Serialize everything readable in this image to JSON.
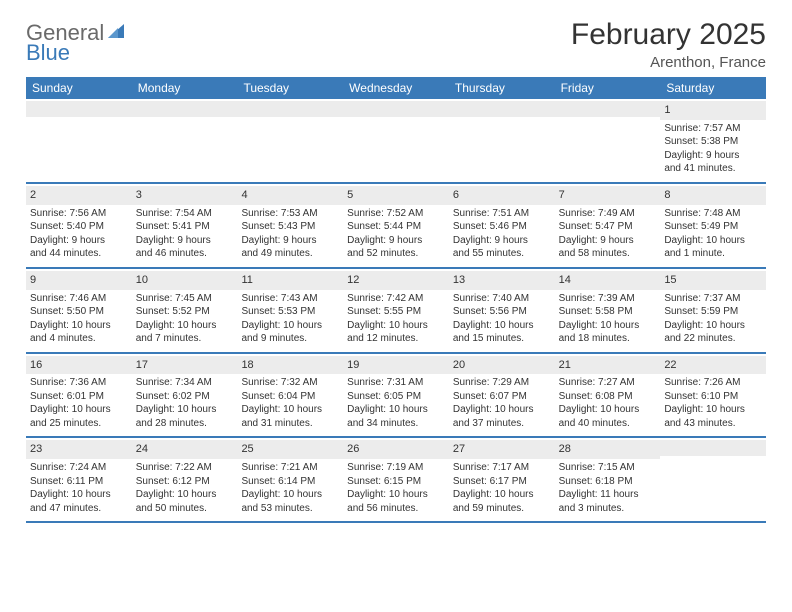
{
  "brand": {
    "word1": "General",
    "word2": "Blue"
  },
  "title": "February 2025",
  "location": "Arenthon, France",
  "colors": {
    "header_bg": "#3a7ab8",
    "header_text": "#ffffff",
    "daynum_bg": "#ececec",
    "row_border": "#3a7ab8",
    "title_text": "#333333",
    "body_text": "#333333",
    "logo_gray": "#6a6a6a",
    "logo_blue": "#3a7ab8",
    "page_bg": "#ffffff"
  },
  "typography": {
    "title_fontsize": 30,
    "location_fontsize": 15,
    "header_fontsize": 12,
    "daynum_fontsize": 11,
    "body_fontsize": 10,
    "logo_fontsize": 22
  },
  "layout": {
    "columns": 7,
    "day_cell_lines": 4
  },
  "weekdays": [
    "Sunday",
    "Monday",
    "Tuesday",
    "Wednesday",
    "Thursday",
    "Friday",
    "Saturday"
  ],
  "weeks": [
    [
      null,
      null,
      null,
      null,
      null,
      null,
      {
        "n": "1",
        "sr": "Sunrise: 7:57 AM",
        "ss": "Sunset: 5:38 PM",
        "d1": "Daylight: 9 hours",
        "d2": "and 41 minutes."
      }
    ],
    [
      {
        "n": "2",
        "sr": "Sunrise: 7:56 AM",
        "ss": "Sunset: 5:40 PM",
        "d1": "Daylight: 9 hours",
        "d2": "and 44 minutes."
      },
      {
        "n": "3",
        "sr": "Sunrise: 7:54 AM",
        "ss": "Sunset: 5:41 PM",
        "d1": "Daylight: 9 hours",
        "d2": "and 46 minutes."
      },
      {
        "n": "4",
        "sr": "Sunrise: 7:53 AM",
        "ss": "Sunset: 5:43 PM",
        "d1": "Daylight: 9 hours",
        "d2": "and 49 minutes."
      },
      {
        "n": "5",
        "sr": "Sunrise: 7:52 AM",
        "ss": "Sunset: 5:44 PM",
        "d1": "Daylight: 9 hours",
        "d2": "and 52 minutes."
      },
      {
        "n": "6",
        "sr": "Sunrise: 7:51 AM",
        "ss": "Sunset: 5:46 PM",
        "d1": "Daylight: 9 hours",
        "d2": "and 55 minutes."
      },
      {
        "n": "7",
        "sr": "Sunrise: 7:49 AM",
        "ss": "Sunset: 5:47 PM",
        "d1": "Daylight: 9 hours",
        "d2": "and 58 minutes."
      },
      {
        "n": "8",
        "sr": "Sunrise: 7:48 AM",
        "ss": "Sunset: 5:49 PM",
        "d1": "Daylight: 10 hours",
        "d2": "and 1 minute."
      }
    ],
    [
      {
        "n": "9",
        "sr": "Sunrise: 7:46 AM",
        "ss": "Sunset: 5:50 PM",
        "d1": "Daylight: 10 hours",
        "d2": "and 4 minutes."
      },
      {
        "n": "10",
        "sr": "Sunrise: 7:45 AM",
        "ss": "Sunset: 5:52 PM",
        "d1": "Daylight: 10 hours",
        "d2": "and 7 minutes."
      },
      {
        "n": "11",
        "sr": "Sunrise: 7:43 AM",
        "ss": "Sunset: 5:53 PM",
        "d1": "Daylight: 10 hours",
        "d2": "and 9 minutes."
      },
      {
        "n": "12",
        "sr": "Sunrise: 7:42 AM",
        "ss": "Sunset: 5:55 PM",
        "d1": "Daylight: 10 hours",
        "d2": "and 12 minutes."
      },
      {
        "n": "13",
        "sr": "Sunrise: 7:40 AM",
        "ss": "Sunset: 5:56 PM",
        "d1": "Daylight: 10 hours",
        "d2": "and 15 minutes."
      },
      {
        "n": "14",
        "sr": "Sunrise: 7:39 AM",
        "ss": "Sunset: 5:58 PM",
        "d1": "Daylight: 10 hours",
        "d2": "and 18 minutes."
      },
      {
        "n": "15",
        "sr": "Sunrise: 7:37 AM",
        "ss": "Sunset: 5:59 PM",
        "d1": "Daylight: 10 hours",
        "d2": "and 22 minutes."
      }
    ],
    [
      {
        "n": "16",
        "sr": "Sunrise: 7:36 AM",
        "ss": "Sunset: 6:01 PM",
        "d1": "Daylight: 10 hours",
        "d2": "and 25 minutes."
      },
      {
        "n": "17",
        "sr": "Sunrise: 7:34 AM",
        "ss": "Sunset: 6:02 PM",
        "d1": "Daylight: 10 hours",
        "d2": "and 28 minutes."
      },
      {
        "n": "18",
        "sr": "Sunrise: 7:32 AM",
        "ss": "Sunset: 6:04 PM",
        "d1": "Daylight: 10 hours",
        "d2": "and 31 minutes."
      },
      {
        "n": "19",
        "sr": "Sunrise: 7:31 AM",
        "ss": "Sunset: 6:05 PM",
        "d1": "Daylight: 10 hours",
        "d2": "and 34 minutes."
      },
      {
        "n": "20",
        "sr": "Sunrise: 7:29 AM",
        "ss": "Sunset: 6:07 PM",
        "d1": "Daylight: 10 hours",
        "d2": "and 37 minutes."
      },
      {
        "n": "21",
        "sr": "Sunrise: 7:27 AM",
        "ss": "Sunset: 6:08 PM",
        "d1": "Daylight: 10 hours",
        "d2": "and 40 minutes."
      },
      {
        "n": "22",
        "sr": "Sunrise: 7:26 AM",
        "ss": "Sunset: 6:10 PM",
        "d1": "Daylight: 10 hours",
        "d2": "and 43 minutes."
      }
    ],
    [
      {
        "n": "23",
        "sr": "Sunrise: 7:24 AM",
        "ss": "Sunset: 6:11 PM",
        "d1": "Daylight: 10 hours",
        "d2": "and 47 minutes."
      },
      {
        "n": "24",
        "sr": "Sunrise: 7:22 AM",
        "ss": "Sunset: 6:12 PM",
        "d1": "Daylight: 10 hours",
        "d2": "and 50 minutes."
      },
      {
        "n": "25",
        "sr": "Sunrise: 7:21 AM",
        "ss": "Sunset: 6:14 PM",
        "d1": "Daylight: 10 hours",
        "d2": "and 53 minutes."
      },
      {
        "n": "26",
        "sr": "Sunrise: 7:19 AM",
        "ss": "Sunset: 6:15 PM",
        "d1": "Daylight: 10 hours",
        "d2": "and 56 minutes."
      },
      {
        "n": "27",
        "sr": "Sunrise: 7:17 AM",
        "ss": "Sunset: 6:17 PM",
        "d1": "Daylight: 10 hours",
        "d2": "and 59 minutes."
      },
      {
        "n": "28",
        "sr": "Sunrise: 7:15 AM",
        "ss": "Sunset: 6:18 PM",
        "d1": "Daylight: 11 hours",
        "d2": "and 3 minutes."
      },
      null
    ]
  ]
}
